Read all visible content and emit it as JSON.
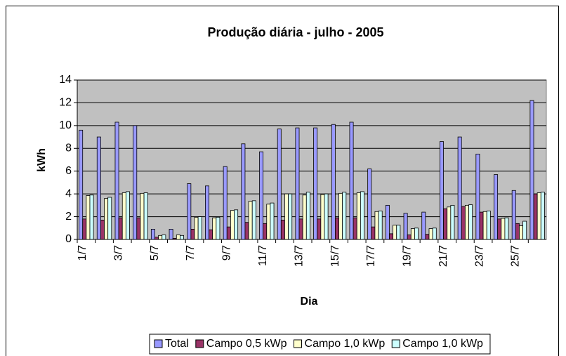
{
  "chart_data": {
    "type": "bar",
    "title": "Produção diária - julho - 2005",
    "x_label": "Dia",
    "y_label": "kWh",
    "categories": [
      "1/7",
      null,
      "3/7",
      null,
      "5/7",
      null,
      "7/7",
      null,
      "9/7",
      null,
      "11/7",
      null,
      "13/7",
      null,
      "15/7",
      null,
      "17/7",
      null,
      "19/7",
      null,
      "21/7",
      null,
      "23/7",
      null,
      "25/7",
      null
    ],
    "series": [
      {
        "name": "Total",
        "color": "#9999FF",
        "values": [
          9.6,
          9.0,
          10.3,
          10.0,
          0.9,
          0.9,
          4.9,
          4.7,
          6.4,
          8.4,
          7.7,
          9.7,
          9.8,
          9.8,
          10.1,
          10.3,
          6.2,
          3.0,
          2.3,
          2.4,
          8.6,
          9.0,
          7.5,
          5.7,
          4.3,
          12.2
        ]
      },
      {
        "name": "Campo 0,5 kWp",
        "color": "#993366",
        "values": [
          1.8,
          1.7,
          1.9,
          1.9,
          0.2,
          0.1,
          0.9,
          0.85,
          1.1,
          1.5,
          1.4,
          1.7,
          1.8,
          1.8,
          1.9,
          1.9,
          1.1,
          0.5,
          0.4,
          0.45,
          2.7,
          2.9,
          2.4,
          1.8,
          1.4,
          4.0
        ]
      },
      {
        "name": "Campo 1,0 kWp",
        "color": "#FFFFCC",
        "values": [
          3.85,
          3.6,
          4.1,
          4.05,
          0.35,
          0.4,
          1.95,
          1.9,
          2.55,
          3.35,
          3.1,
          4.0,
          3.9,
          3.95,
          4.05,
          4.1,
          2.45,
          1.25,
          0.95,
          0.95,
          2.85,
          3.0,
          2.45,
          1.85,
          1.2,
          4.1
        ]
      },
      {
        "name": "Campo 1,0 kWp",
        "color": "#CCFFFF",
        "values": [
          3.9,
          3.7,
          4.2,
          4.1,
          0.4,
          0.35,
          2.0,
          1.95,
          2.6,
          3.4,
          3.2,
          4.0,
          4.15,
          4.0,
          4.15,
          4.2,
          2.5,
          1.25,
          1.0,
          1.0,
          3.0,
          3.05,
          2.5,
          1.9,
          1.6,
          4.15
        ]
      }
    ],
    "ylim": [
      0,
      14
    ],
    "yticks": [
      0,
      2,
      4,
      6,
      8,
      10,
      12,
      14
    ],
    "grid": true,
    "legend": "bottom"
  }
}
